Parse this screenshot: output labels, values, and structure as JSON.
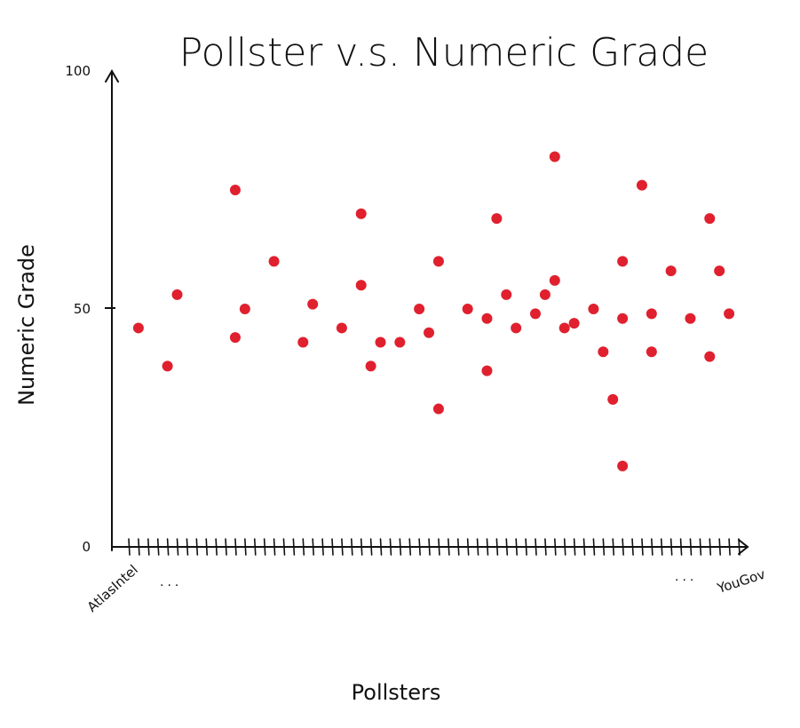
{
  "chart_data": {
    "type": "scatter",
    "title": "Pollster v.s. Numeric Grade",
    "xlabel": "Pollsters",
    "ylabel": "Numeric Grade",
    "ylim": [
      0,
      100
    ],
    "yticks": [
      0,
      50,
      100
    ],
    "ytick_labels": [
      "0",
      "50",
      "100"
    ],
    "x_first_label": "AtlasIntel",
    "x_last_label": "YouGov",
    "x_ellipsis": "...",
    "grid": false,
    "legend": "none",
    "point_color": "#e0202e",
    "x_tick_count": 64,
    "points": [
      {
        "x": 1,
        "y": 46
      },
      {
        "x": 4,
        "y": 38
      },
      {
        "x": 5,
        "y": 53
      },
      {
        "x": 11,
        "y": 75
      },
      {
        "x": 11,
        "y": 44
      },
      {
        "x": 12,
        "y": 50
      },
      {
        "x": 15,
        "y": 60
      },
      {
        "x": 18,
        "y": 43
      },
      {
        "x": 19,
        "y": 51
      },
      {
        "x": 22,
        "y": 46
      },
      {
        "x": 24,
        "y": 70
      },
      {
        "x": 24,
        "y": 55
      },
      {
        "x": 25,
        "y": 38
      },
      {
        "x": 26,
        "y": 43
      },
      {
        "x": 28,
        "y": 43
      },
      {
        "x": 30,
        "y": 50
      },
      {
        "x": 31,
        "y": 45
      },
      {
        "x": 32,
        "y": 60
      },
      {
        "x": 32,
        "y": 29
      },
      {
        "x": 35,
        "y": 50
      },
      {
        "x": 37,
        "y": 48
      },
      {
        "x": 37,
        "y": 37
      },
      {
        "x": 38,
        "y": 69
      },
      {
        "x": 39,
        "y": 53
      },
      {
        "x": 40,
        "y": 46
      },
      {
        "x": 42,
        "y": 49
      },
      {
        "x": 43,
        "y": 53
      },
      {
        "x": 44,
        "y": 82
      },
      {
        "x": 44,
        "y": 56
      },
      {
        "x": 45,
        "y": 46
      },
      {
        "x": 46,
        "y": 47
      },
      {
        "x": 48,
        "y": 50
      },
      {
        "x": 49,
        "y": 41
      },
      {
        "x": 50,
        "y": 31
      },
      {
        "x": 51,
        "y": 60
      },
      {
        "x": 51,
        "y": 48
      },
      {
        "x": 51,
        "y": 17
      },
      {
        "x": 53,
        "y": 76
      },
      {
        "x": 54,
        "y": 41
      },
      {
        "x": 54,
        "y": 49
      },
      {
        "x": 56,
        "y": 58
      },
      {
        "x": 58,
        "y": 48
      },
      {
        "x": 60,
        "y": 69
      },
      {
        "x": 60,
        "y": 40
      },
      {
        "x": 61,
        "y": 58
      },
      {
        "x": 62,
        "y": 49
      }
    ]
  }
}
